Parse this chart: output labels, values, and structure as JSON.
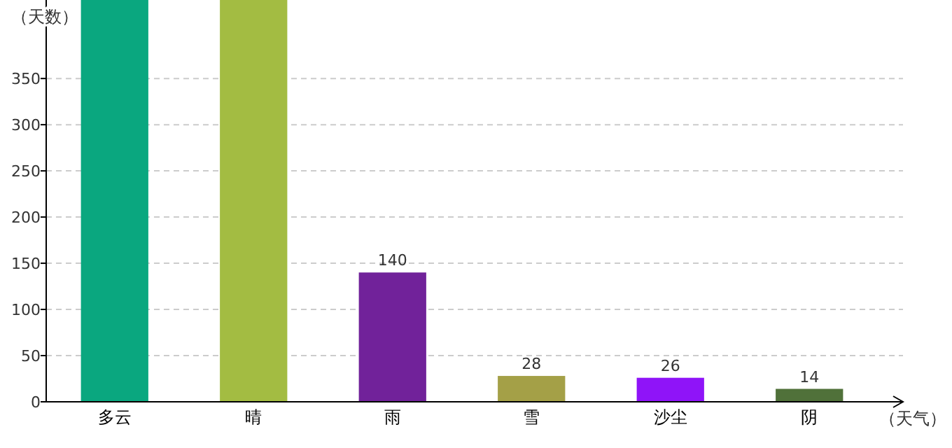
{
  "chart_data": {
    "type": "bar",
    "xlabel": "（天气）",
    "ylabel": "（天数）",
    "categories": [
      "多云",
      "晴",
      "雨",
      "雪",
      "沙尘",
      "阴"
    ],
    "values": [
      435,
      435,
      140,
      28,
      26,
      14
    ],
    "colors": [
      "#0aa77f",
      "#a3bc42",
      "#71229a",
      "#a4a047",
      "#8f14f8",
      "#50713a"
    ],
    "value_labels": [
      null,
      null,
      "140",
      "28",
      "26",
      "14"
    ],
    "ylim": [
      0,
      435
    ],
    "yticks": [
      0,
      50,
      100,
      150,
      200,
      250,
      300,
      350
    ],
    "grid": "y"
  }
}
